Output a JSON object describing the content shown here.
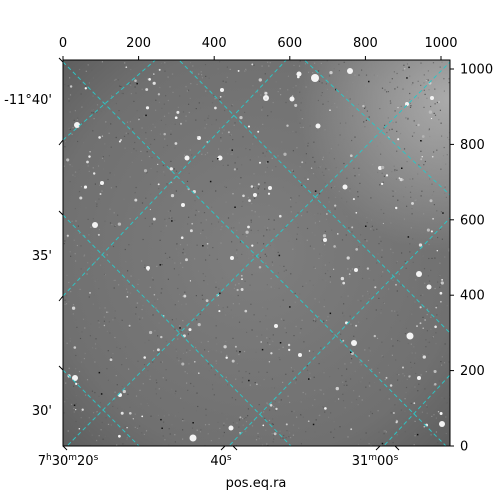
{
  "figure": {
    "xlabel_bottom": "pos.eq.ra",
    "colors": {
      "grid": "#2ec4c4",
      "frame": "#000000",
      "sky": "#7a7a7a"
    }
  },
  "pixel_axes": {
    "x_range": [
      0,
      1024
    ],
    "y_range": [
      0,
      1024
    ],
    "top_ticks": [
      "0",
      "200",
      "400",
      "600",
      "800",
      "1000"
    ],
    "right_ticks": [
      "0",
      "200",
      "400",
      "600",
      "800",
      "1000"
    ]
  },
  "world_axes": {
    "left_ticks": [
      "-11°40'",
      "35'",
      "30'"
    ],
    "bottom_ticks": [
      {
        "main": "7",
        "s1": "h",
        "mid": "30",
        "s2": "m",
        "end": "20",
        "s3": "s"
      },
      {
        "main": "",
        "s1": "",
        "mid": "",
        "s2": "",
        "end": "40",
        "s3": "s"
      },
      {
        "main": "",
        "s1": "",
        "mid": "31",
        "s2": "m",
        "end": "00",
        "s3": "s"
      }
    ]
  }
}
